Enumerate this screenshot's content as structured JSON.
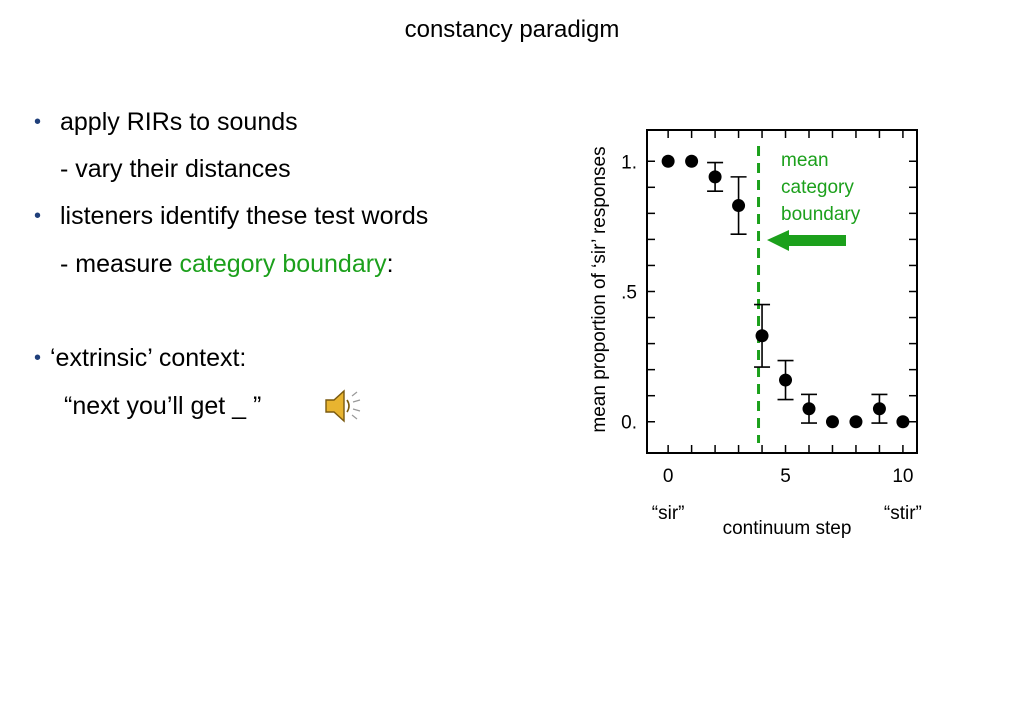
{
  "slide": {
    "title": "constancy paradigm",
    "bullets": [
      {
        "bullet": "•",
        "text": "apply RIRs to sounds"
      },
      {
        "text": "- vary their distances"
      },
      {
        "bullet": "•",
        "text": "listeners identify these test words"
      },
      {
        "prefix": "- measure ",
        "highlight": "category boundary",
        "suffix": ":"
      },
      {
        "bullet": "•",
        "text": "‘extrinsic’ context:"
      },
      {
        "text": "“next you’ll get _ ”"
      }
    ],
    "speaker_icon": "speaker-icon"
  },
  "colors": {
    "accent": "#1ca01c",
    "bullet": "#1f3f7a"
  },
  "chart_data": {
    "type": "scatter",
    "xlabel": "continuum step",
    "ylabel": "mean proportion of ‘sir’ responses",
    "xlim": [
      -0.9,
      10.6
    ],
    "ylim": [
      -0.12,
      1.12
    ],
    "x_ticks": [
      0,
      5,
      10
    ],
    "y_ticks": [
      {
        "value": 1.0,
        "label": "1."
      },
      {
        "value": 0.5,
        "label": ".5"
      },
      {
        "value": 0.0,
        "label": "0."
      }
    ],
    "x_endpoint_labels": [
      {
        "x": 0,
        "label": "“sir”"
      },
      {
        "x": 10,
        "label": "“stir”"
      }
    ],
    "points": [
      {
        "x": 0,
        "y": 1.0,
        "err": 0
      },
      {
        "x": 1,
        "y": 1.0,
        "err": 0
      },
      {
        "x": 2,
        "y": 0.94,
        "err": 0.055
      },
      {
        "x": 3,
        "y": 0.83,
        "err": 0.11
      },
      {
        "x": 4,
        "y": 0.33,
        "err": 0.12
      },
      {
        "x": 5,
        "y": 0.16,
        "err": 0.075
      },
      {
        "x": 6,
        "y": 0.05,
        "err": 0.055
      },
      {
        "x": 7,
        "y": 0.0,
        "err": 0
      },
      {
        "x": 8,
        "y": 0.0,
        "err": 0
      },
      {
        "x": 9,
        "y": 0.05,
        "err": 0.055
      },
      {
        "x": 10,
        "y": 0.0,
        "err": 0
      }
    ],
    "boundary": {
      "x": 3.85
    },
    "annotation": {
      "lines": [
        "mean",
        "category",
        "boundary"
      ]
    }
  }
}
